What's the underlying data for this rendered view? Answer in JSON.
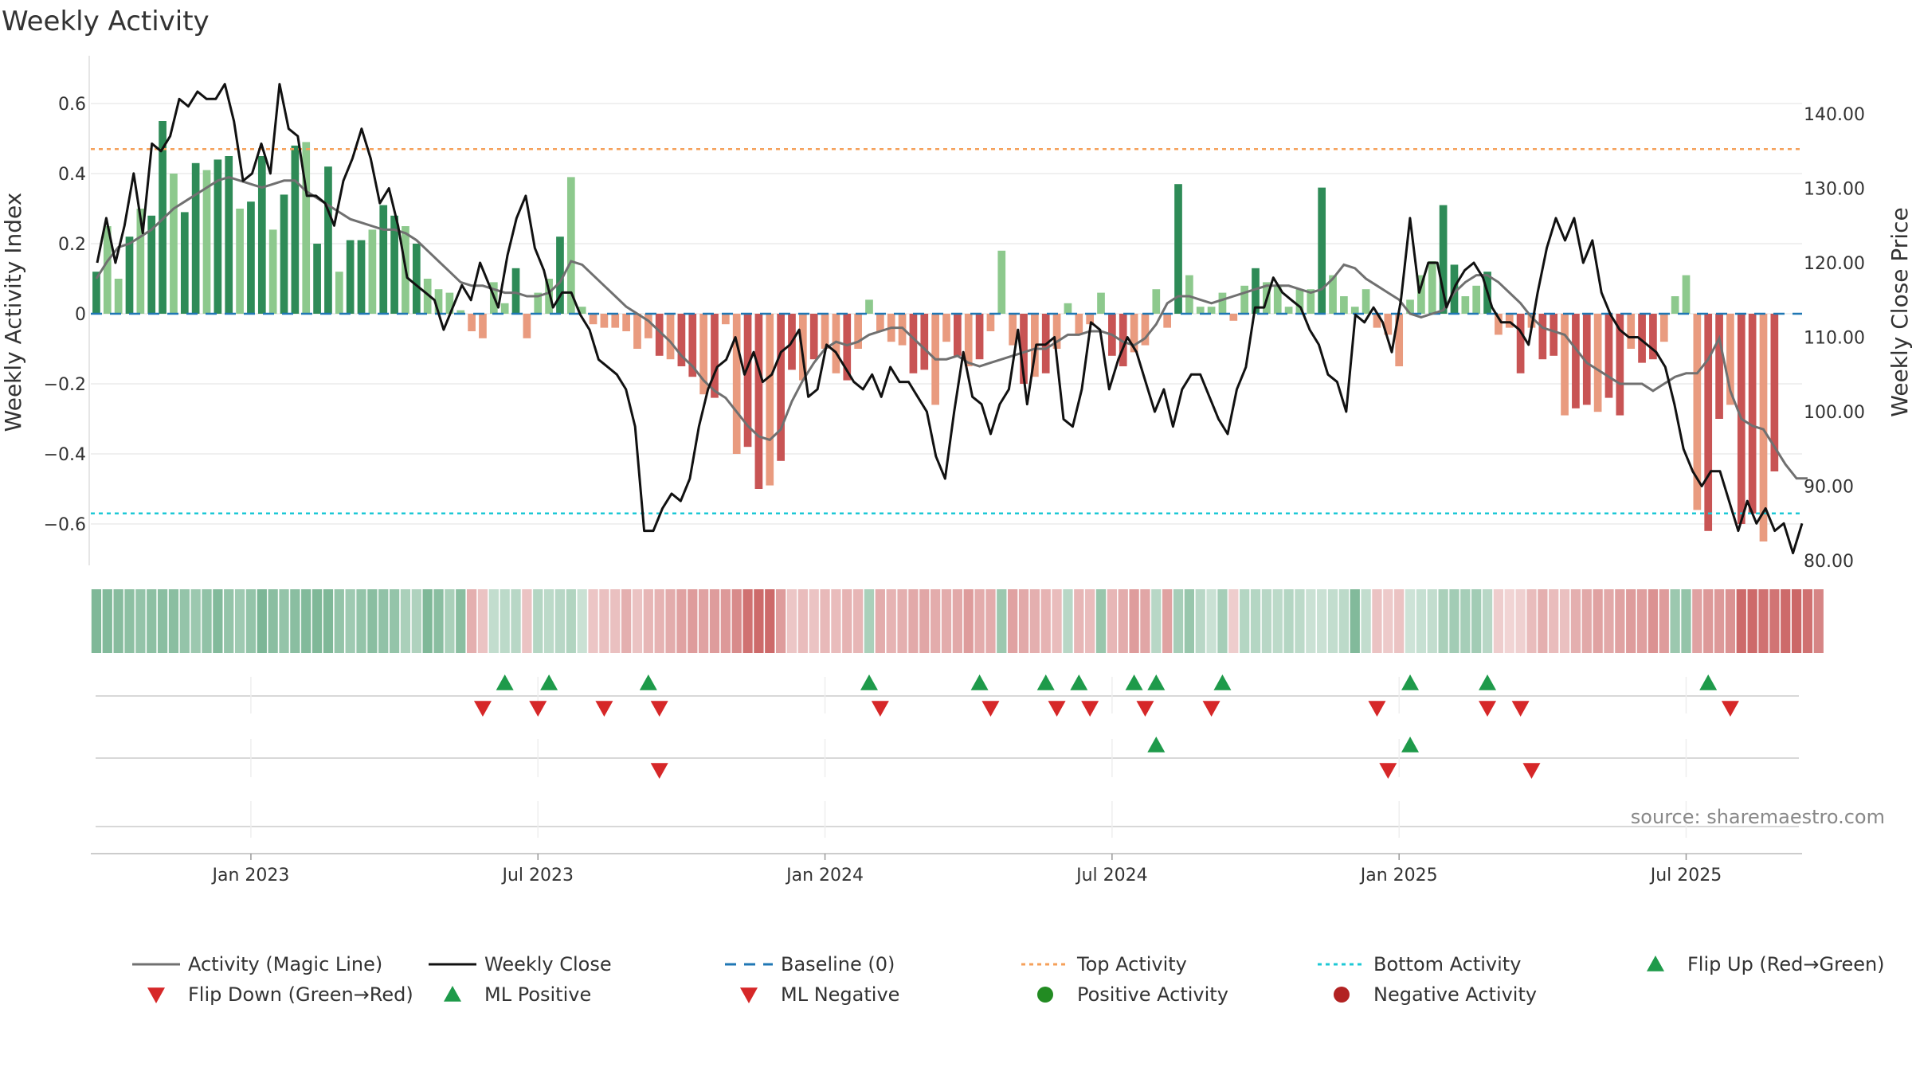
{
  "page": {
    "title": "Weekly Activity"
  },
  "chart_data": {
    "type": "bar",
    "title": "Weekly Activity",
    "ylabel": "Weekly Activity Index",
    "y2label": "Weekly Close Price",
    "ylim": [
      -0.7,
      0.7
    ],
    "y2lim": [
      80,
      147
    ],
    "yticks": [
      -0.6,
      -0.4,
      -0.2,
      0,
      0.2,
      0.4,
      0.6
    ],
    "ytick_labels": [
      "−0.6",
      "−0.4",
      "−0.2",
      "0",
      "0.2",
      "0.4",
      "0.6"
    ],
    "y2ticks": [
      80,
      90,
      100,
      110,
      120,
      130,
      140
    ],
    "y2tick_labels": [
      "80.00",
      "90.00",
      "100.00",
      "110.00",
      "120.00",
      "130.00",
      "140.00"
    ],
    "x_domain": [
      0,
      155
    ],
    "x_ticks": [
      {
        "x": 14.5,
        "label": "Jan 2023"
      },
      {
        "x": 40.5,
        "label": "Jul 2023"
      },
      {
        "x": 66.5,
        "label": "Jan 2024"
      },
      {
        "x": 92.5,
        "label": "Jul 2024"
      },
      {
        "x": 118.5,
        "label": "Jan 2025"
      },
      {
        "x": 144.5,
        "label": "Jul 2025"
      }
    ],
    "top_activity": 0.47,
    "bottom_activity": -0.57,
    "baseline": 0,
    "activity_values": [
      0.12,
      0.25,
      0.1,
      0.22,
      0.3,
      0.28,
      0.55,
      0.4,
      0.29,
      0.43,
      0.41,
      0.44,
      0.45,
      0.3,
      0.32,
      0.45,
      0.24,
      0.34,
      0.48,
      0.49,
      0.2,
      0.42,
      0.12,
      0.21,
      0.21,
      0.24,
      0.31,
      0.28,
      0.25,
      0.2,
      0.1,
      0.07,
      0.06,
      0.01,
      -0.05,
      -0.07,
      0.09,
      0.03,
      0.13,
      -0.07,
      0.06,
      0.1,
      0.22,
      0.39,
      0.02,
      -0.03,
      -0.04,
      -0.04,
      -0.05,
      -0.1,
      -0.07,
      -0.12,
      -0.13,
      -0.15,
      -0.18,
      -0.23,
      -0.24,
      -0.03,
      -0.4,
      -0.38,
      -0.5,
      -0.49,
      -0.42,
      -0.16,
      -0.19,
      -0.13,
      -0.1,
      -0.17,
      -0.19,
      -0.1,
      0.04,
      -0.05,
      -0.08,
      -0.09,
      -0.17,
      -0.16,
      -0.26,
      -0.08,
      -0.12,
      -0.15,
      -0.13,
      -0.05,
      0.18,
      -0.09,
      -0.2,
      -0.18,
      -0.17,
      -0.1,
      0.03,
      -0.06,
      -0.03,
      0.06,
      -0.12,
      -0.15,
      -0.11,
      -0.09,
      0.07,
      -0.04,
      0.37,
      0.11,
      0.02,
      0.02,
      0.06,
      -0.02,
      0.08,
      0.13,
      0.09,
      0.08,
      0.02,
      0.07,
      0.07,
      0.36,
      0.11,
      0.05,
      0.02,
      0.07,
      -0.04,
      -0.06,
      -0.15,
      0.04,
      0.11,
      0.15,
      0.31,
      0.14,
      0.05,
      0.08,
      0.12,
      -0.06,
      -0.04,
      -0.17,
      -0.04,
      -0.13,
      -0.12,
      -0.29,
      -0.27,
      -0.26,
      -0.28,
      -0.24,
      -0.29,
      -0.1,
      -0.14,
      -0.13,
      -0.08,
      0.05,
      0.11,
      -0.56,
      -0.62,
      -0.3,
      -0.26,
      -0.6,
      -0.57,
      -0.65,
      -0.45
    ],
    "magic_line": [
      0.1,
      0.15,
      0.19,
      0.2,
      0.22,
      0.24,
      0.27,
      0.3,
      0.32,
      0.34,
      0.36,
      0.38,
      0.39,
      0.38,
      0.37,
      0.36,
      0.37,
      0.38,
      0.38,
      0.35,
      0.33,
      0.31,
      0.29,
      0.27,
      0.26,
      0.25,
      0.24,
      0.24,
      0.23,
      0.21,
      0.18,
      0.15,
      0.12,
      0.09,
      0.08,
      0.08,
      0.07,
      0.06,
      0.06,
      0.05,
      0.05,
      0.06,
      0.09,
      0.15,
      0.14,
      0.11,
      0.08,
      0.05,
      0.02,
      0.0,
      -0.02,
      -0.05,
      -0.08,
      -0.12,
      -0.15,
      -0.19,
      -0.22,
      -0.24,
      -0.28,
      -0.32,
      -0.35,
      -0.36,
      -0.33,
      -0.25,
      -0.19,
      -0.14,
      -0.1,
      -0.08,
      -0.09,
      -0.08,
      -0.06,
      -0.05,
      -0.04,
      -0.04,
      -0.07,
      -0.1,
      -0.13,
      -0.13,
      -0.12,
      -0.14,
      -0.15,
      -0.14,
      -0.13,
      -0.12,
      -0.11,
      -0.1,
      -0.1,
      -0.08,
      -0.06,
      -0.06,
      -0.05,
      -0.05,
      -0.06,
      -0.08,
      -0.09,
      -0.07,
      -0.03,
      0.03,
      0.05,
      0.05,
      0.04,
      0.03,
      0.04,
      0.05,
      0.06,
      0.07,
      0.08,
      0.08,
      0.08,
      0.07,
      0.06,
      0.07,
      0.1,
      0.14,
      0.13,
      0.1,
      0.08,
      0.06,
      0.04,
      0.0,
      -0.01,
      0.0,
      0.01,
      0.06,
      0.09,
      0.11,
      0.11,
      0.09,
      0.06,
      0.03,
      -0.01,
      -0.04,
      -0.05,
      -0.06,
      -0.1,
      -0.14,
      -0.16,
      -0.18,
      -0.2,
      -0.2,
      -0.2,
      -0.22,
      -0.2,
      -0.18,
      -0.17,
      -0.17,
      -0.13,
      -0.07,
      -0.22,
      -0.3,
      -0.32,
      -0.33,
      -0.38,
      -0.43,
      -0.47,
      -0.47
    ],
    "weekly_close": [
      120,
      126,
      120,
      125,
      132,
      124,
      136,
      135,
      137,
      142,
      141,
      143,
      142,
      142,
      144,
      139,
      131,
      132,
      136,
      132,
      144,
      138,
      137,
      129,
      129,
      128,
      125,
      131,
      134,
      138,
      134,
      128,
      130,
      125,
      118,
      117,
      116,
      115,
      111,
      114,
      117,
      115,
      120,
      117,
      114,
      121,
      126,
      129,
      122,
      119,
      114,
      116,
      116,
      113,
      111,
      107,
      106,
      105,
      103,
      98,
      84,
      84,
      87,
      89,
      88,
      91,
      98,
      103,
      106,
      107,
      110,
      105,
      108,
      104,
      105,
      108,
      109,
      111,
      102,
      103,
      109,
      108,
      106,
      104,
      103,
      105,
      102,
      106,
      104,
      104,
      102,
      100,
      94,
      91,
      100,
      108,
      102,
      101,
      97,
      101,
      103,
      111,
      101,
      109,
      109,
      110,
      99,
      98,
      103,
      112,
      111,
      103,
      107,
      110,
      108,
      104,
      100,
      103,
      98,
      103,
      105,
      105,
      102,
      99,
      97,
      103,
      106,
      114,
      114,
      118,
      116,
      115,
      114,
      111,
      109,
      105,
      104,
      100,
      113,
      112,
      114,
      112,
      108,
      115,
      126,
      116,
      120,
      120,
      114,
      117,
      119,
      120,
      118,
      114,
      112,
      112,
      111,
      109,
      116,
      122,
      126,
      123,
      126,
      120,
      123,
      116,
      113,
      111,
      110,
      110,
      109,
      108,
      106,
      101,
      95,
      92,
      90,
      92,
      92,
      88,
      84,
      88,
      85,
      87,
      84,
      85,
      81,
      85
    ],
    "strip_value": [
      0.72,
      0.7,
      0.68,
      0.64,
      0.6,
      0.64,
      0.66,
      0.66,
      0.6,
      0.56,
      0.62,
      0.7,
      0.6,
      0.54,
      0.6,
      0.74,
      0.66,
      0.6,
      0.66,
      0.7,
      0.72,
      0.72,
      0.6,
      0.54,
      0.6,
      0.66,
      0.62,
      0.6,
      0.48,
      0.45,
      0.72,
      0.66,
      0.48,
      0.66,
      0.48,
      0.36,
      0.34,
      0.38,
      0.4,
      0.36,
      0.42,
      0.38,
      0.4,
      0.44,
      0.3,
      0.35,
      0.38,
      0.38,
      0.48,
      0.36,
      0.44,
      0.46,
      0.5,
      0.56,
      0.6,
      0.56,
      0.6,
      0.62,
      0.7,
      0.86,
      0.9,
      0.9,
      0.6,
      0.34,
      0.4,
      0.36,
      0.42,
      0.4,
      0.46,
      0.44,
      0.48,
      0.5,
      0.46,
      0.48,
      0.52,
      0.54,
      0.5,
      0.5,
      0.52,
      0.6,
      0.5,
      0.5,
      0.56,
      0.56,
      0.52,
      0.48,
      0.46,
      0.4,
      0.4,
      0.44,
      0.4,
      0.58,
      0.44,
      0.5,
      0.6,
      0.54,
      0.4,
      0.56,
      0.5,
      0.58,
      0.4,
      0.3,
      0.5,
      0.3,
      0.42,
      0.42,
      0.4,
      0.38,
      0.42,
      0.38,
      0.3,
      0.3,
      0.34,
      0.38,
      0.7,
      0.34,
      0.36,
      0.32,
      0.36,
      0.28,
      0.32,
      0.34,
      0.48,
      0.52,
      0.5,
      0.52,
      0.4,
      0.3,
      0.26,
      0.28,
      0.4,
      0.48,
      0.4,
      0.38,
      0.48,
      0.52,
      0.56,
      0.52,
      0.56,
      0.6,
      0.58,
      0.66,
      0.6,
      0.56,
      0.6,
      0.56,
      0.62,
      0.62,
      0.66,
      0.9,
      0.9,
      0.86,
      0.84,
      0.9,
      0.92,
      0.86,
      0.74
    ],
    "markers": {
      "flip_up": [
        37,
        41,
        50,
        70,
        80,
        86,
        89,
        94,
        96,
        102,
        119,
        126,
        146
      ],
      "flip_down": [
        35,
        40,
        46,
        51,
        71,
        81,
        87,
        90,
        95,
        101,
        116,
        126,
        129,
        148
      ],
      "ml_positive": [
        96,
        119
      ],
      "ml_negative": [
        51,
        117,
        130
      ]
    },
    "colors": {
      "positive_dark": "#2e8b57",
      "positive_light": "#8dc98d",
      "negative_dark": "#c85454",
      "negative_light": "#e99b7f",
      "magic_line": "#707070",
      "close": "#111111",
      "baseline": "#1f77b4",
      "top": "#f5a05a",
      "bottom": "#1ec8d6",
      "flip_up": "#1e9a4a",
      "flip_down": "#d62728",
      "positive_dot": "#228b22",
      "negative_dot": "#b22222"
    },
    "legend": [
      "Activity (Magic Line)",
      "Weekly Close",
      "Baseline (0)",
      "Top Activity",
      "Bottom Activity",
      "Flip Up (Red→Green)",
      "Flip Down (Green→Red)",
      "ML Positive",
      "ML Negative",
      "Positive Activity",
      "Negative Activity"
    ],
    "source": "source: sharemaestro.com"
  }
}
